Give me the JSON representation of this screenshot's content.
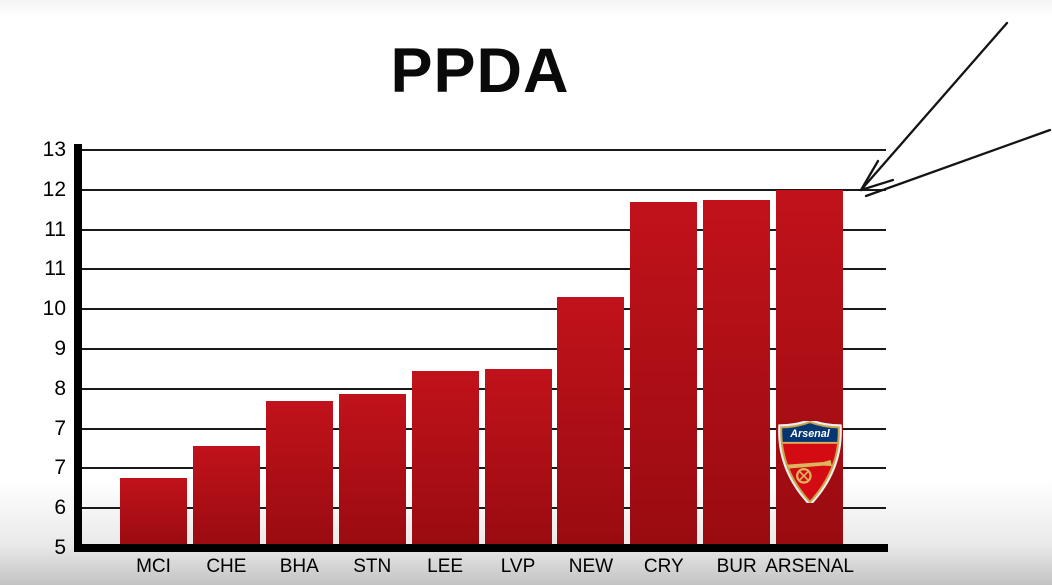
{
  "title": "PPDA",
  "chart_data": {
    "type": "bar",
    "title": "PPDA",
    "categories": [
      "MCI",
      "CHE",
      "BHA",
      "STN",
      "LEE",
      "LVP",
      "NEW",
      "CRY",
      "BUR",
      "ARSENAL"
    ],
    "values": [
      6.4,
      7.05,
      7.95,
      8.1,
      8.55,
      8.6,
      10.05,
      11.95,
      12.0,
      12.2
    ],
    "xlabel": "",
    "ylabel": "",
    "ylim": [
      5,
      13
    ],
    "yticks": {
      "values": [
        5,
        5.8,
        6.6,
        7.4,
        8.2,
        9,
        9.8,
        10.6,
        11.4,
        12.2,
        13
      ],
      "labels": [
        "5",
        "6",
        "7",
        "7",
        "8",
        "9",
        "10",
        "11",
        "11",
        "12",
        "13"
      ]
    },
    "grid": "horizontal",
    "legend": "none",
    "highlight": {
      "category": "ARSENAL",
      "annotations": [
        "hand-drawn arrow from top-right corner pointing at top of ARSENAL bar",
        "Arsenal club crest badge placed on lower part of ARSENAL bar"
      ]
    }
  },
  "colors": {
    "bar_top": "#c1121b",
    "bar_bottom": "#990b10",
    "axis": "#000000",
    "gridline": "#191919",
    "arrow": "#141414",
    "background": "#ffffff",
    "background_bottom": "#c3c3c3"
  },
  "crest": {
    "label": "Arsenal",
    "banner_color": "#063672",
    "field_color": "#d40b12",
    "cannon_color": "#dcb45e",
    "rim_color": "#c9a64e"
  }
}
